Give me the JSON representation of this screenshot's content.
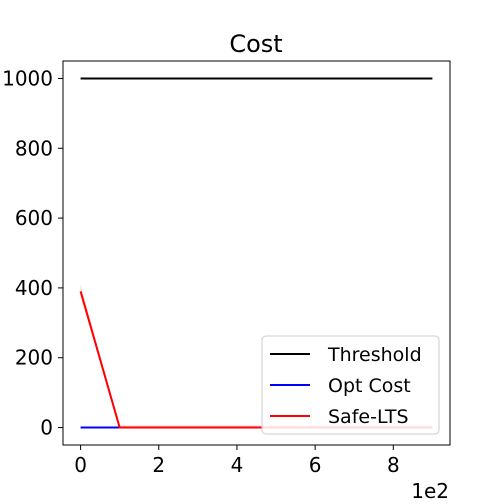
{
  "chart_data": {
    "type": "line",
    "title": "Cost",
    "xlabel": "",
    "ylabel": "",
    "x_offset_text": "1e2",
    "xlim": [
      -0.45,
      9.45
    ],
    "ylim": [
      -50,
      1050
    ],
    "x_ticks": [
      0,
      2,
      4,
      6,
      8
    ],
    "y_ticks": [
      0,
      200,
      400,
      600,
      800,
      1000
    ],
    "grid": false,
    "legend_position": "lower-right",
    "series": [
      {
        "name": "Threshold",
        "color": "#000000",
        "x": [
          0,
          1,
          2,
          3,
          4,
          5,
          6,
          7,
          8,
          9
        ],
        "values": [
          1000,
          1000,
          1000,
          1000,
          1000,
          1000,
          1000,
          1000,
          1000,
          1000
        ]
      },
      {
        "name": "Opt Cost",
        "color": "#0000ff",
        "x": [
          0,
          1,
          2,
          3,
          4,
          5,
          6,
          7,
          8,
          9
        ],
        "values": [
          0,
          0,
          0,
          0,
          0,
          0,
          0,
          0,
          0,
          0
        ]
      },
      {
        "name": "Safe-LTS",
        "color": "#ff0000",
        "x": [
          0,
          1,
          2,
          3,
          4,
          5,
          6,
          7,
          8,
          9
        ],
        "values": [
          390,
          0,
          0,
          0,
          0,
          0,
          0,
          0,
          0,
          0
        ],
        "band_low": [
          375,
          0,
          0,
          0,
          0,
          0,
          0,
          0,
          0,
          0
        ],
        "band_high": [
          410,
          6,
          6,
          6,
          6,
          6,
          6,
          6,
          6,
          6
        ],
        "band_color": "#ffb6c1"
      }
    ]
  }
}
